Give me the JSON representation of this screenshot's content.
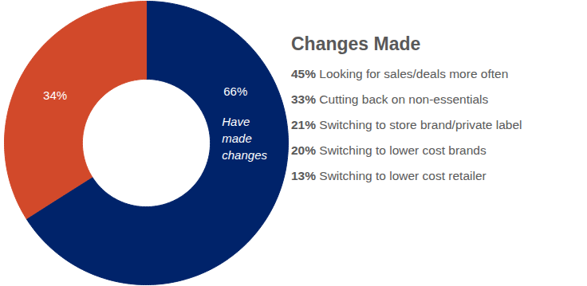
{
  "chart_data": [
    {
      "type": "donut",
      "categories": [
        "Have made changes",
        null
      ],
      "values": [
        66,
        34
      ],
      "value_labels": [
        "66%",
        "34%"
      ],
      "colors": [
        "#00236a",
        "#d2492a"
      ],
      "data_labels": true
    },
    {
      "type": "list",
      "title": "Changes Made",
      "categories": [
        "Looking for sales/deals more often",
        "Cutting back on non-essentials",
        "Switching to store brand/private label",
        "Switching to lower cost brands",
        "Switching to lower cost retailer"
      ],
      "values": [
        45,
        33,
        21,
        20,
        13
      ],
      "value_labels": [
        "45%",
        "33%",
        "21%",
        "20%",
        "13%"
      ],
      "data_labels": true
    }
  ]
}
